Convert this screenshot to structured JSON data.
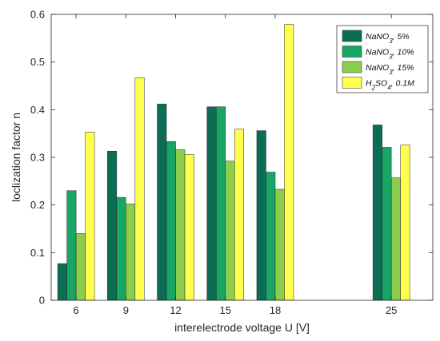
{
  "chart_data": {
    "type": "bar",
    "title": "",
    "xlabel": "interelectrode voltage U [V]",
    "ylabel": "loclization factor n",
    "ylim": [
      0,
      0.6
    ],
    "yticks": [
      "0",
      "0.1",
      "0.2",
      "0.3",
      "0.4",
      "0.5",
      "0.6"
    ],
    "x": [
      6,
      9,
      12,
      15,
      18,
      25
    ],
    "xticks": [
      "6",
      "9",
      "12",
      "15",
      "18",
      "25"
    ],
    "xlim": [
      4.5,
      27.5
    ],
    "grid": false,
    "legend_position": "top-right",
    "series": [
      {
        "name": "NaNO3, 5%",
        "label_main": "NaNO",
        "label_sub": "3",
        "label_rest": ", 5%",
        "color": "#0b6e54",
        "values": [
          0.077,
          0.313,
          0.412,
          0.406,
          0.356,
          0.368
        ]
      },
      {
        "name": "NaNO3, 10%",
        "label_main": "NaNO",
        "label_sub": "3",
        "label_rest": ", 10%",
        "color": "#18a664",
        "values": [
          0.23,
          0.216,
          0.333,
          0.406,
          0.269,
          0.321
        ]
      },
      {
        "name": "NaNO3, 15%",
        "label_main": "NaNO",
        "label_sub": "3",
        "label_rest": ", 15%",
        "color": "#8ccd4e",
        "values": [
          0.14,
          0.202,
          0.316,
          0.292,
          0.233,
          0.257
        ]
      },
      {
        "name": "H2SO4, 0.1M",
        "label_main": "H",
        "label_sub": "2",
        "label_rest": "SO",
        "label_sub2": "4",
        "label_rest2": ", 0.1M",
        "color": "#ffff4d",
        "values": [
          0.353,
          0.467,
          0.306,
          0.359,
          0.579,
          0.326
        ]
      }
    ]
  }
}
